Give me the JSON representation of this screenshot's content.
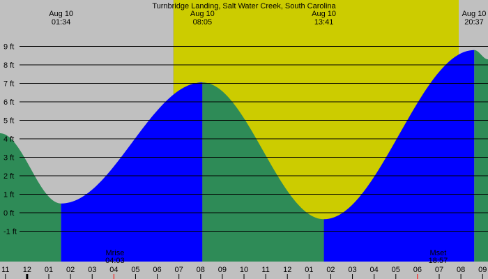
{
  "chart_data": {
    "type": "area",
    "title": "Turnbridge Landing, Salt Water Creek, South Carolina",
    "xlabel": "",
    "ylabel": "",
    "x_unit": "hour",
    "x_range": [
      22.75,
      45.25
    ],
    "ylim": [
      -2,
      10
    ],
    "y_ticks": [
      "-1 ft",
      "0 ft",
      "1 ft",
      "2 ft",
      "3 ft",
      "4 ft",
      "5 ft",
      "6 ft",
      "7 ft",
      "8 ft",
      "9 ft"
    ],
    "y_tick_values": [
      -1,
      0,
      1,
      2,
      3,
      4,
      5,
      6,
      7,
      8,
      9
    ],
    "hour_labels": [
      "11",
      "12",
      "01",
      "02",
      "03",
      "04",
      "05",
      "06",
      "07",
      "08",
      "09",
      "10",
      "11",
      "12",
      "01",
      "02",
      "03",
      "04",
      "05",
      "06",
      "07",
      "08",
      "09"
    ],
    "hour_values": [
      23,
      24,
      25,
      26,
      27,
      28,
      29,
      30,
      31,
      32,
      33,
      34,
      35,
      36,
      37,
      38,
      39,
      40,
      41,
      42,
      43,
      44,
      45
    ],
    "background": {
      "night_color": "#c0c0c0",
      "day_color": "#cccc00",
      "day_start": 30.75,
      "day_end": 43.9
    },
    "tide_series": [
      {
        "t": 22.75,
        "h": 4.3
      },
      {
        "t": 25.567,
        "h": 0.5
      },
      {
        "t": 32.083,
        "h": 7.05
      },
      {
        "t": 37.683,
        "h": -0.35
      },
      {
        "t": 44.617,
        "h": 8.8
      },
      {
        "t": 45.25,
        "h": 8.3
      }
    ],
    "events": [
      {
        "date": "Aug 10",
        "time": "01:34",
        "t": 25.567,
        "type": "low",
        "height": 0.5
      },
      {
        "date": "Aug 10",
        "time": "08:05",
        "t": 32.083,
        "type": "high",
        "height": 7.05
      },
      {
        "date": "Aug 10",
        "time": "13:41",
        "t": 37.683,
        "type": "low",
        "height": -0.35
      },
      {
        "date": "Aug 10",
        "time": "20:37",
        "t": 44.617,
        "type": "high",
        "height": 8.8
      }
    ],
    "moon_events": [
      {
        "label": "Mrise",
        "time": "04:03",
        "t": 28.05
      },
      {
        "label": "Mset",
        "time": "18:57",
        "t": 42.95
      }
    ],
    "marker_hours": [
      24,
      28,
      42
    ],
    "colors": {
      "rising": "#0000ff",
      "falling": "#2e8b57",
      "gridline": "#000000",
      "tick_marker": "#ff0000",
      "midnight_marker": "#000000"
    }
  }
}
